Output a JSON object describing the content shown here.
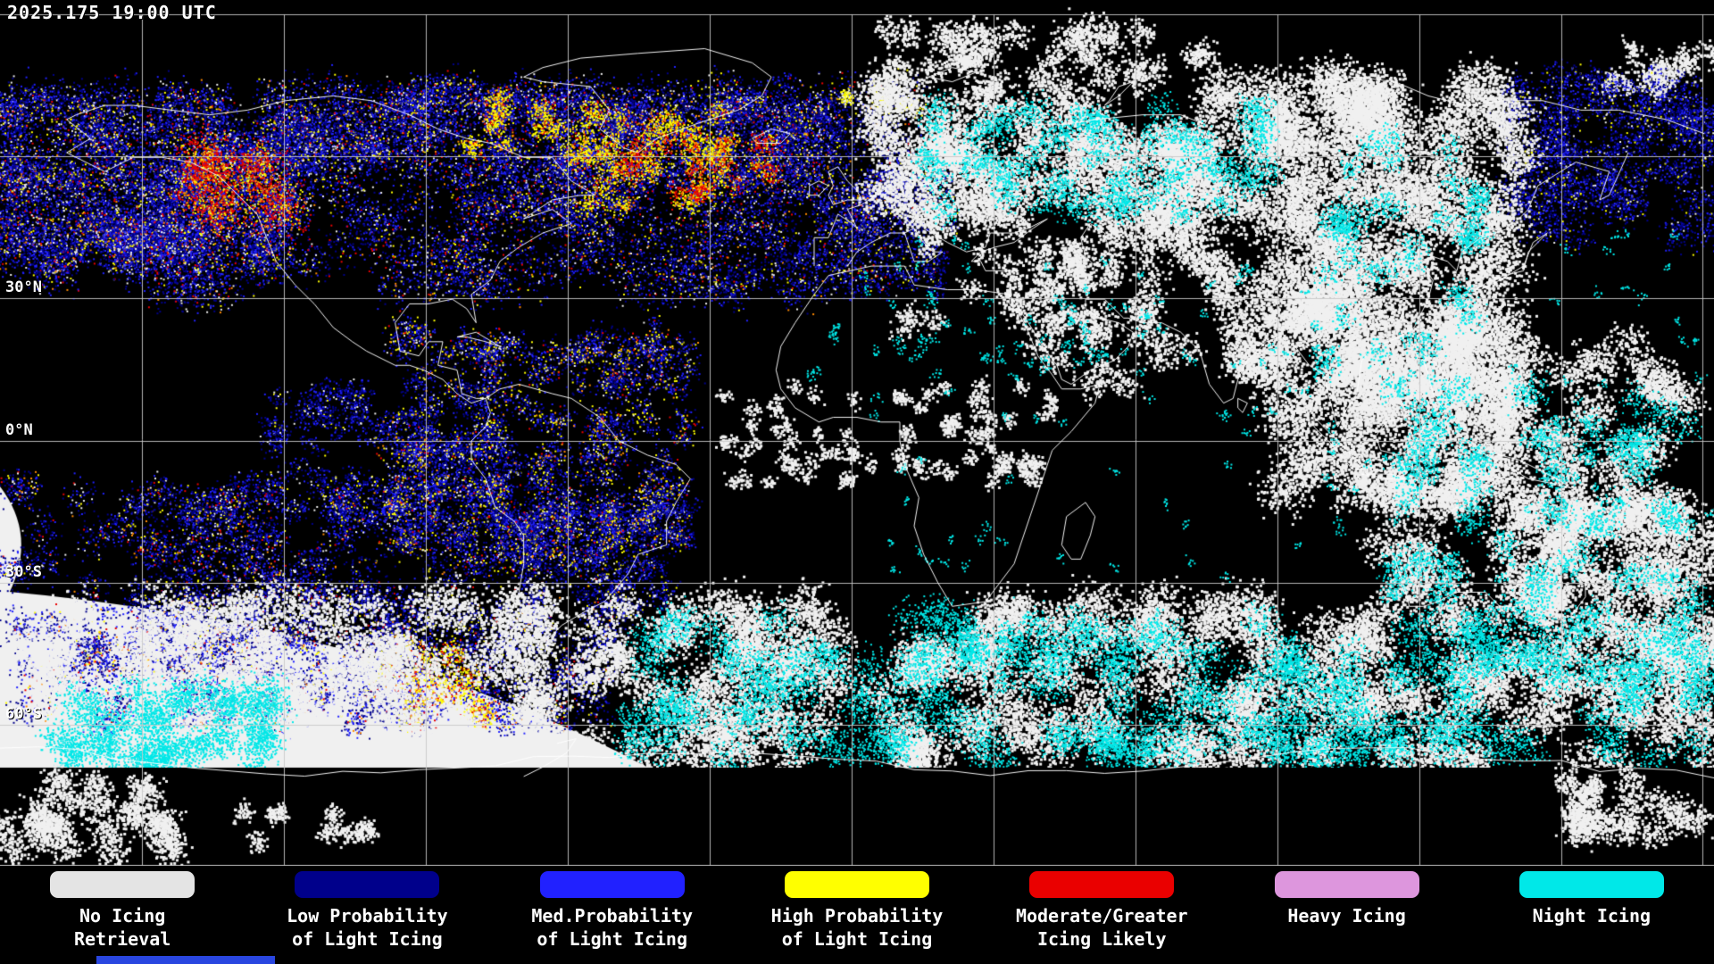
{
  "header": {
    "timestamp": "2025.175 19:00 UTC"
  },
  "map": {
    "lat_labels": [
      "30°N",
      "0°N",
      "30°S",
      "60°S"
    ]
  },
  "legend": {
    "items": [
      {
        "color": "#e4e4e4",
        "lines": [
          "No Icing",
          "Retrieval"
        ]
      },
      {
        "color": "#00008b",
        "lines": [
          "Low Probability",
          "of Light Icing"
        ]
      },
      {
        "color": "#2121ff",
        "lines": [
          "Med.Probability",
          "of Light Icing"
        ]
      },
      {
        "color": "#ffff00",
        "lines": [
          "High Probability",
          "of Light Icing"
        ]
      },
      {
        "color": "#ea0000",
        "lines": [
          "Moderate/Greater",
          "Icing Likely"
        ]
      },
      {
        "color": "#dd96dd",
        "lines": [
          "Heavy Icing"
        ]
      },
      {
        "color": "#00e8e8",
        "lines": [
          "Night Icing"
        ]
      }
    ]
  },
  "palette": {
    "map_background": "#000000",
    "cloud_white": "#f0f0f0",
    "low": "#00008b",
    "med": "#2121ff",
    "high": "#ffff00",
    "moderate": "#ea0000",
    "orange": "#ff8a00",
    "heavy": "#dd96dd",
    "night": "#00e8e8",
    "grid": "#c8c8c8",
    "coast": "#ffffff",
    "bottom_bar": "#2946e0"
  }
}
